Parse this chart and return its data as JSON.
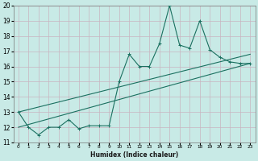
{
  "xlabel": "Humidex (Indice chaleur)",
  "background_color": "#c8eae6",
  "grid_color": "#c8b4c0",
  "line_color": "#1a7060",
  "xlim": [
    -0.5,
    23.5
  ],
  "ylim": [
    11,
    20
  ],
  "xticks": [
    0,
    1,
    2,
    3,
    4,
    5,
    6,
    7,
    8,
    9,
    10,
    11,
    12,
    13,
    14,
    15,
    16,
    17,
    18,
    19,
    20,
    21,
    22,
    23
  ],
  "yticks": [
    11,
    12,
    13,
    14,
    15,
    16,
    17,
    18,
    19,
    20
  ],
  "series1_x": [
    0,
    1,
    2,
    3,
    4,
    5,
    6,
    7,
    8,
    9,
    10,
    11,
    12,
    13,
    14,
    15,
    16,
    17,
    18,
    19,
    20,
    21,
    22,
    23
  ],
  "series1_y": [
    13,
    12,
    11.5,
    12,
    12,
    12.5,
    11.9,
    12.1,
    12.1,
    12.1,
    15,
    16.8,
    16,
    16,
    17.5,
    20,
    17.4,
    17.2,
    19,
    17.1,
    16.6,
    16.3,
    16.2,
    16.2
  ],
  "series2_x": [
    0,
    23
  ],
  "series2_y": [
    12.0,
    16.2
  ],
  "series3_x": [
    0,
    23
  ],
  "series3_y": [
    13.0,
    16.8
  ]
}
